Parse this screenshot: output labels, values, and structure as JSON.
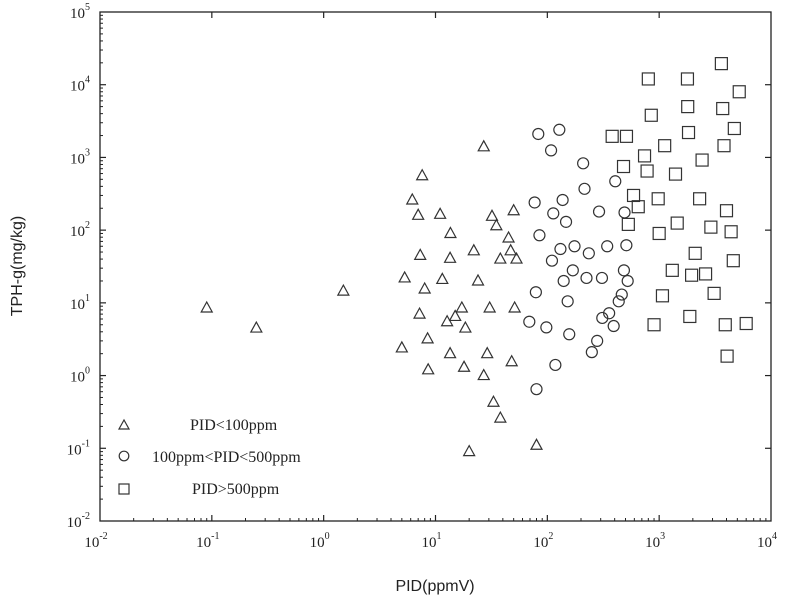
{
  "chart_data": {
    "type": "scatter",
    "title": "",
    "xlabel": "PID(ppmV)",
    "ylabel": "TPH-g(mg/kg)",
    "xscale": "log",
    "yscale": "log",
    "xlim": [
      0.01,
      10000
    ],
    "ylim": [
      0.01,
      100000
    ],
    "x_ticks": [
      {
        "base": "10",
        "exp": "-2"
      },
      {
        "base": "10",
        "exp": "-1"
      },
      {
        "base": "10",
        "exp": "0"
      },
      {
        "base": "10",
        "exp": "1"
      },
      {
        "base": "10",
        "exp": "2"
      },
      {
        "base": "10",
        "exp": "3"
      },
      {
        "base": "10",
        "exp": "4"
      }
    ],
    "y_ticks": [
      {
        "base": "10",
        "exp": "-2"
      },
      {
        "base": "10",
        "exp": "-1"
      },
      {
        "base": "10",
        "exp": "0"
      },
      {
        "base": "10",
        "exp": "1"
      },
      {
        "base": "10",
        "exp": "2"
      },
      {
        "base": "10",
        "exp": "3"
      },
      {
        "base": "10",
        "exp": "4"
      },
      {
        "base": "10",
        "exp": "5"
      }
    ],
    "legend_position": "bottom-left",
    "series": [
      {
        "name": "PID<100ppm",
        "marker": "triangle",
        "points": [
          [
            0.09,
            8.5
          ],
          [
            0.25,
            4.5
          ],
          [
            1.5,
            14.5
          ],
          [
            5,
            2.4
          ],
          [
            5.3,
            22
          ],
          [
            6.2,
            260
          ],
          [
            7,
            160
          ],
          [
            7.6,
            560
          ],
          [
            7.2,
            7
          ],
          [
            7.3,
            45
          ],
          [
            8,
            15.5
          ],
          [
            8.5,
            3.2
          ],
          [
            8.6,
            1.2
          ],
          [
            11,
            165
          ],
          [
            11.5,
            21
          ],
          [
            12.7,
            5.5
          ],
          [
            13.6,
            90
          ],
          [
            13.5,
            41
          ],
          [
            13.5,
            2
          ],
          [
            15,
            6.5
          ],
          [
            17.2,
            8.5
          ],
          [
            18,
            1.3
          ],
          [
            18.5,
            4.5
          ],
          [
            20,
            0.09
          ],
          [
            22,
            52
          ],
          [
            24,
            20
          ],
          [
            27,
            1.0
          ],
          [
            27,
            1400
          ],
          [
            29,
            2
          ],
          [
            30.5,
            8.5
          ],
          [
            32,
            155
          ],
          [
            33,
            0.43
          ],
          [
            35,
            115
          ],
          [
            38,
            0.26
          ],
          [
            38,
            40
          ],
          [
            45,
            78
          ],
          [
            47,
            52
          ],
          [
            48,
            1.55
          ],
          [
            50,
            185
          ],
          [
            51,
            8.5
          ],
          [
            53,
            40
          ],
          [
            80,
            0.11
          ]
        ]
      },
      {
        "name": "100ppm<PID<500ppm",
        "marker": "circle",
        "points": [
          [
            69,
            5.5
          ],
          [
            77,
            240
          ],
          [
            79,
            14
          ],
          [
            80,
            0.65
          ],
          [
            83,
            2100
          ],
          [
            85,
            85
          ],
          [
            98,
            4.6
          ],
          [
            108,
            1250
          ],
          [
            110,
            38
          ],
          [
            113,
            170
          ],
          [
            118,
            1.4
          ],
          [
            128,
            2400
          ],
          [
            131,
            55
          ],
          [
            137,
            260
          ],
          [
            140,
            20
          ],
          [
            147,
            130
          ],
          [
            152,
            10.5
          ],
          [
            157,
            3.7
          ],
          [
            169,
            28
          ],
          [
            175,
            60
          ],
          [
            209,
            830
          ],
          [
            215,
            370
          ],
          [
            224,
            22
          ],
          [
            235,
            48
          ],
          [
            250,
            2.1
          ],
          [
            279,
            3.0
          ],
          [
            290,
            180
          ],
          [
            308,
            22
          ],
          [
            310,
            6.2
          ],
          [
            343,
            60
          ],
          [
            357,
            7.2
          ],
          [
            392,
            4.8
          ],
          [
            405,
            470
          ],
          [
            435,
            10.5
          ],
          [
            463,
            13
          ],
          [
            484,
            28
          ],
          [
            490,
            175
          ],
          [
            509,
            62
          ],
          [
            523,
            20
          ]
        ]
      },
      {
        "name": "PID>500ppm",
        "marker": "square",
        "points": [
          [
            380,
            1950
          ],
          [
            480,
            750
          ],
          [
            510,
            1950
          ],
          [
            530,
            120
          ],
          [
            590,
            300
          ],
          [
            650,
            210
          ],
          [
            740,
            1050
          ],
          [
            780,
            650
          ],
          [
            800,
            12000
          ],
          [
            850,
            3800
          ],
          [
            900,
            5
          ],
          [
            980,
            270
          ],
          [
            1000,
            90
          ],
          [
            1070,
            12.5
          ],
          [
            1120,
            1450
          ],
          [
            1310,
            28
          ],
          [
            1400,
            590
          ],
          [
            1450,
            125
          ],
          [
            1790,
            12000
          ],
          [
            1800,
            5000
          ],
          [
            1830,
            2200
          ],
          [
            1880,
            6.5
          ],
          [
            1950,
            24
          ],
          [
            2100,
            48
          ],
          [
            2300,
            270
          ],
          [
            2420,
            920
          ],
          [
            2600,
            25
          ],
          [
            2900,
            110
          ],
          [
            3100,
            13.5
          ],
          [
            3600,
            19500
          ],
          [
            3700,
            4700
          ],
          [
            3800,
            1450
          ],
          [
            3900,
            5
          ],
          [
            4000,
            185
          ],
          [
            4050,
            1.85
          ],
          [
            4400,
            95
          ],
          [
            4600,
            38
          ],
          [
            4700,
            2500
          ],
          [
            5200,
            8000
          ],
          [
            6000,
            5.2
          ]
        ]
      }
    ]
  }
}
